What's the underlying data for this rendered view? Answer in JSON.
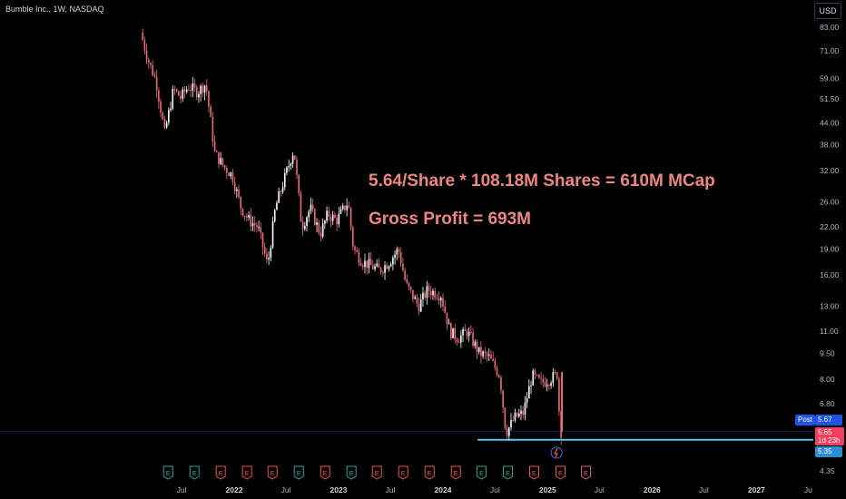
{
  "header": {
    "symbol": "Bumble Inc., 1W, NASDAQ",
    "currency": "USD"
  },
  "annotations": [
    "5.64/Share * 108.18M Shares = 610M MCap",
    "Gross Profit = 693M"
  ],
  "price_tags": {
    "post_label": "Post",
    "post_price": "5.67",
    "last_price": "5.65",
    "countdown": "1d 23h",
    "line_price": "5.35"
  },
  "colors": {
    "background": "#000000",
    "up": "#ffffff",
    "down": "#ee6b7c",
    "annotation": "#ee8583",
    "horizontal_line": "#5bc8e8",
    "post_tag": "#1e53e5",
    "last_tag": "#f23f5d",
    "earnings_past_good": "#26a69a",
    "earnings_past_bad": "#ef5350"
  },
  "chart_data": {
    "type": "candlestick",
    "scale": "log",
    "y_ticks": [
      "83.00",
      "71.00",
      "59.00",
      "51.50",
      "44.00",
      "38.00",
      "32.00",
      "26.00",
      "22.00",
      "19.00",
      "16.00",
      "13.00",
      "11.00",
      "9.50",
      "8.00",
      "6.80",
      "4.35"
    ],
    "x_ticks": [
      "Jul",
      "2022",
      "Jul",
      "2023",
      "Jul",
      "2024",
      "Jul",
      "2025",
      "Jul",
      "2026",
      "Jul",
      "2027",
      "Ju"
    ],
    "horizontal_line": {
      "value": 5.35,
      "start": "2024-05"
    },
    "grid": false,
    "earnings_markers": [
      {
        "date": "2021-05",
        "result": "beat"
      },
      {
        "date": "2021-08",
        "result": "beat"
      },
      {
        "date": "2021-11",
        "result": "miss"
      },
      {
        "date": "2022-02",
        "result": "miss"
      },
      {
        "date": "2022-05",
        "result": "miss"
      },
      {
        "date": "2022-08",
        "result": "beat"
      },
      {
        "date": "2022-11",
        "result": "miss"
      },
      {
        "date": "2023-02",
        "result": "beat"
      },
      {
        "date": "2023-05",
        "result": "miss"
      },
      {
        "date": "2023-08",
        "result": "miss"
      },
      {
        "date": "2023-11",
        "result": "miss"
      },
      {
        "date": "2024-02",
        "result": "miss"
      },
      {
        "date": "2024-05",
        "result": "beat"
      },
      {
        "date": "2024-08",
        "result": "beat"
      },
      {
        "date": "2024-11",
        "result": "miss"
      },
      {
        "date": "2025-02",
        "result": "miss"
      },
      {
        "date": "2025-05",
        "result": "upcoming"
      }
    ],
    "anchors": [
      [
        "2021-02-15",
        80
      ],
      [
        "2021-03-15",
        66
      ],
      [
        "2021-04-10",
        58
      ],
      [
        "2021-05-10",
        41
      ],
      [
        "2021-06-10",
        55
      ],
      [
        "2021-07-05",
        52
      ],
      [
        "2021-08-01",
        56
      ],
      [
        "2021-09-01",
        54
      ],
      [
        "2021-10-01",
        57
      ],
      [
        "2021-11-01",
        36
      ],
      [
        "2021-12-01",
        33
      ],
      [
        "2022-01-01",
        31
      ],
      [
        "2022-02-01",
        25
      ],
      [
        "2022-03-01",
        23
      ],
      [
        "2022-04-01",
        22
      ],
      [
        "2022-05-05",
        17
      ],
      [
        "2022-06-01",
        25
      ],
      [
        "2022-07-01",
        30
      ],
      [
        "2022-08-05",
        37
      ],
      [
        "2022-09-01",
        22
      ],
      [
        "2022-10-01",
        25
      ],
      [
        "2022-11-05",
        21
      ],
      [
        "2022-12-01",
        24
      ],
      [
        "2023-01-01",
        23
      ],
      [
        "2023-02-10",
        26
      ],
      [
        "2023-03-01",
        19
      ],
      [
        "2023-04-01",
        17.5
      ],
      [
        "2023-05-01",
        17
      ],
      [
        "2023-06-01",
        16.5
      ],
      [
        "2023-07-05",
        17.5
      ],
      [
        "2023-08-05",
        19
      ],
      [
        "2023-09-01",
        15
      ],
      [
        "2023-10-15",
        13
      ],
      [
        "2023-11-15",
        14.5
      ],
      [
        "2024-01-01",
        14
      ],
      [
        "2024-02-01",
        11
      ],
      [
        "2024-03-01",
        10.5
      ],
      [
        "2024-04-01",
        11
      ],
      [
        "2024-05-15",
        9.5
      ],
      [
        "2024-06-15",
        9.3
      ],
      [
        "2024-07-25",
        8.2
      ],
      [
        "2024-08-15",
        5.6
      ],
      [
        "2024-09-15",
        6.2
      ],
      [
        "2024-10-15",
        6.4
      ],
      [
        "2024-11-15",
        8.2
      ],
      [
        "2024-12-15",
        7.8
      ],
      [
        "2025-01-15",
        8.0
      ],
      [
        "2025-02-12",
        8.3
      ],
      [
        "2025-02-20",
        5.65
      ]
    ]
  }
}
